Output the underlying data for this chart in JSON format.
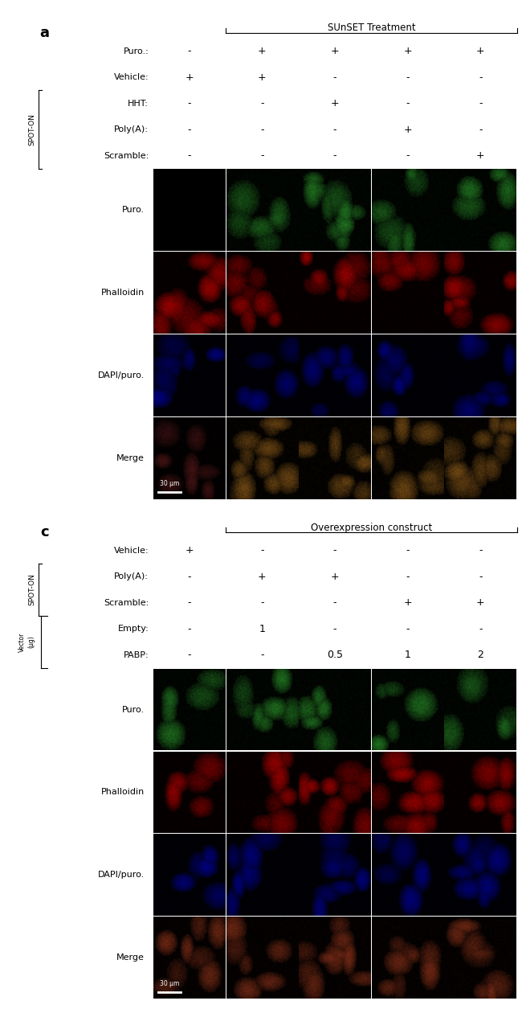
{
  "fig_width": 6.5,
  "fig_height": 12.55,
  "panel_a": {
    "label": "a",
    "bracket_label": "SUnSET Treatment",
    "rows": [
      {
        "name": "Puro.:",
        "values": [
          "-",
          "+",
          "+",
          "+",
          "+"
        ]
      },
      {
        "name": "Vehicle:",
        "values": [
          "+",
          "+",
          "-",
          "-",
          "-"
        ]
      },
      {
        "name": "HHT:",
        "values": [
          "-",
          "-",
          "+",
          "-",
          "-"
        ]
      },
      {
        "name": "Poly(A):",
        "values": [
          "-",
          "-",
          "-",
          "+",
          "-"
        ]
      },
      {
        "name": "Scramble:",
        "values": [
          "-",
          "-",
          "-",
          "-",
          "+"
        ]
      }
    ],
    "spot_on_rows": [
      2,
      3,
      4
    ],
    "image_row_labels": [
      "Puro.",
      "Phalloidin",
      "DAPI/puro.",
      "Merge"
    ],
    "scale_bar_text": "30 μm"
  },
  "panel_c": {
    "label": "c",
    "bracket_label": "Overexpression construct",
    "rows": [
      {
        "name": "Vehicle:",
        "values": [
          "+",
          "-",
          "-",
          "-",
          "-"
        ]
      },
      {
        "name": "Poly(A):",
        "values": [
          "-",
          "+",
          "+",
          "-",
          "-"
        ]
      },
      {
        "name": "Scramble:",
        "values": [
          "-",
          "-",
          "-",
          "+",
          "+"
        ]
      },
      {
        "name": "Empty:",
        "values": [
          "-",
          "1",
          "-",
          "-",
          "-"
        ]
      },
      {
        "name": "PABP:",
        "values": [
          "-",
          "-",
          "0.5",
          "1",
          "2"
        ]
      }
    ],
    "spot_on_rows": [
      1,
      2
    ],
    "vector_rows": [
      3,
      4
    ],
    "image_row_labels": [
      "Puro.",
      "Phalloidin",
      "DAPI/puro.",
      "Merge"
    ],
    "scale_bar_text": "30 μm"
  },
  "colors": {
    "panel_a_images": [
      [
        "#000000",
        "#1a5c1a",
        "#1a5c1a",
        "#1a5c1a",
        "#1a5c1a"
      ],
      [
        "#7a0000",
        "#7a0000",
        "#7a0000",
        "#7a0000",
        "#7a0000"
      ],
      [
        "#000066",
        "#000066",
        "#000066",
        "#000066",
        "#000066"
      ],
      [
        "#3a1010",
        "#5a3a10",
        "#5a3a10",
        "#5a3a10",
        "#5a3a10"
      ]
    ],
    "panel_c_images": [
      [
        "#1a5c1a",
        "#1a5c1a",
        "#1a5c1a",
        "#1a5c1a",
        "#1a5c1a"
      ],
      [
        "#7a0000",
        "#7a0000",
        "#7a0000",
        "#7a0000",
        "#7a0000"
      ],
      [
        "#000066",
        "#000066",
        "#000066",
        "#000066",
        "#000066"
      ],
      [
        "#5a2010",
        "#5a2010",
        "#5a2010",
        "#5a2010",
        "#5a2010"
      ]
    ]
  }
}
